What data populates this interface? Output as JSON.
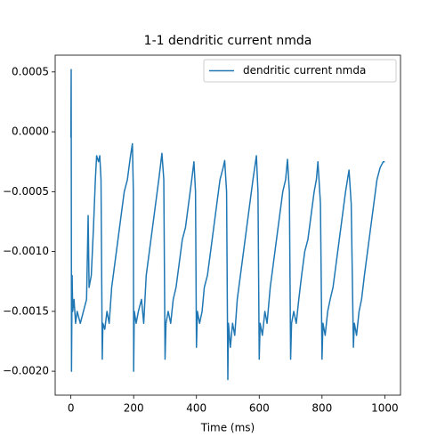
{
  "chart_data": {
    "type": "line",
    "title": "1-1 dendritic current nmda",
    "x_label": "Time (ms)",
    "legend": "upper right",
    "xlim": [
      -50,
      1050
    ],
    "xticks": [
      0,
      200,
      400,
      600,
      800,
      1000
    ],
    "ylim": [
      -0.0022,
      0.00064
    ],
    "yticks": [
      0.0005,
      {
        "value": 0,
        "label": "0.0000"
      },
      {
        "value": -0.0005,
        "label": "−0.0005"
      },
      {
        "value": -0.001,
        "label": "−0.0010"
      },
      {
        "value": -0.0015,
        "label": "−0.0015"
      },
      {
        "value": -0.002,
        "label": "−0.0020"
      }
    ],
    "x": [
      0,
      1,
      2,
      4,
      6,
      10,
      15,
      20,
      30,
      40,
      50,
      55,
      58,
      65,
      72,
      78,
      82,
      88,
      92,
      96,
      100,
      102,
      108,
      115,
      122,
      130,
      140,
      150,
      160,
      170,
      180,
      190,
      196,
      199,
      200,
      202,
      208,
      215,
      225,
      232,
      240,
      250,
      260,
      270,
      280,
      290,
      296,
      300,
      303,
      310,
      318,
      326,
      335,
      345,
      355,
      365,
      375,
      385,
      392,
      397,
      400,
      403,
      410,
      418,
      425,
      435,
      445,
      455,
      465,
      475,
      485,
      490,
      496,
      500,
      502,
      508,
      515,
      522,
      530,
      540,
      550,
      560,
      570,
      580,
      591,
      596,
      600,
      603,
      610,
      618,
      625,
      635,
      645,
      655,
      665,
      675,
      684,
      690,
      696,
      700,
      703,
      710,
      718,
      726,
      735,
      745,
      755,
      765,
      775,
      782,
      787,
      795,
      800,
      803,
      810,
      818,
      826,
      835,
      845,
      855,
      865,
      875,
      886,
      893,
      900,
      903,
      910,
      918,
      926,
      935,
      945,
      955,
      965,
      975,
      985,
      995,
      1000
    ],
    "series": [
      {
        "name": "dendritic current nmda",
        "color": "#1f77b4",
        "values": [
          -5e-05,
          0.00052,
          -0.002,
          -0.0012,
          -0.0015,
          -0.0014,
          -0.0016,
          -0.0015,
          -0.0016,
          -0.0015,
          -0.0014,
          -0.0007,
          -0.0013,
          -0.0012,
          -0.0008,
          -0.0004,
          -0.0002,
          -0.00025,
          -0.0002,
          -0.0004,
          -0.0019,
          -0.0016,
          -0.00165,
          -0.0015,
          -0.0016,
          -0.0013,
          -0.0011,
          -0.0009,
          -0.0007,
          -0.0005,
          -0.0004,
          -0.0002,
          -0.0001,
          -0.0005,
          -0.002,
          -0.0015,
          -0.0016,
          -0.0015,
          -0.0014,
          -0.0016,
          -0.0012,
          -0.001,
          -0.0008,
          -0.0006,
          -0.0004,
          -0.00018,
          -0.0004,
          -0.0019,
          -0.0016,
          -0.0015,
          -0.0016,
          -0.0014,
          -0.0013,
          -0.0011,
          -0.0009,
          -0.0008,
          -0.0006,
          -0.0004,
          -0.00025,
          -0.0005,
          -0.0018,
          -0.0015,
          -0.0016,
          -0.0015,
          -0.0013,
          -0.0012,
          -0.001,
          -0.0008,
          -0.0006,
          -0.0004,
          -0.0003,
          -0.00024,
          -0.0005,
          -0.00207,
          -0.0016,
          -0.0018,
          -0.0016,
          -0.0017,
          -0.0014,
          -0.0012,
          -0.001,
          -0.0008,
          -0.0006,
          -0.0004,
          -0.0002,
          -0.0005,
          -0.0019,
          -0.0016,
          -0.0017,
          -0.0015,
          -0.0016,
          -0.0013,
          -0.0011,
          -0.0009,
          -0.0007,
          -0.0005,
          -0.0004,
          -0.00023,
          -0.0005,
          -0.0019,
          -0.0016,
          -0.0015,
          -0.0016,
          -0.0014,
          -0.0012,
          -0.001,
          -0.0009,
          -0.0007,
          -0.0005,
          -0.0004,
          -0.00025,
          -0.0006,
          -0.0019,
          -0.0016,
          -0.0017,
          -0.0015,
          -0.0014,
          -0.0013,
          -0.0011,
          -0.0009,
          -0.0007,
          -0.0005,
          -0.00032,
          -0.0006,
          -0.0018,
          -0.0016,
          -0.0017,
          -0.0015,
          -0.0014,
          -0.0012,
          -0.001,
          -0.0008,
          -0.0006,
          -0.0004,
          -0.0003,
          -0.00025,
          -0.00025
        ]
      }
    ]
  }
}
